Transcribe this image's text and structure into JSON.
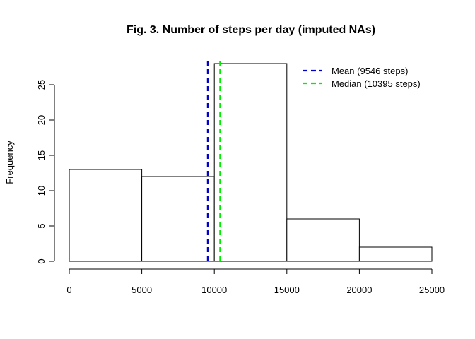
{
  "chart_data": {
    "type": "bar",
    "title": "Fig. 3. Number of steps per day (imputed NAs)",
    "xlabel": "",
    "ylabel": "Frequency",
    "bins": [
      {
        "from": 0,
        "to": 5000,
        "count": 13
      },
      {
        "from": 5000,
        "to": 10000,
        "count": 12
      },
      {
        "from": 10000,
        "to": 15000,
        "count": 28
      },
      {
        "from": 15000,
        "to": 20000,
        "count": 6
      },
      {
        "from": 20000,
        "to": 25000,
        "count": 2
      }
    ],
    "xlim": [
      0,
      25000
    ],
    "ylim": [
      0,
      28
    ],
    "x_ticks": [
      0,
      5000,
      10000,
      15000,
      20000,
      25000
    ],
    "y_ticks": [
      0,
      5,
      10,
      15,
      20,
      25
    ],
    "grid": false,
    "bar_fill": "#ffffff",
    "bar_stroke": "#000000",
    "reference_lines": [
      {
        "label": "Mean (9546 steps)",
        "x": 9546,
        "color": "#0000cd",
        "style": "dashed"
      },
      {
        "label": "Median (10395 steps)",
        "x": 10395,
        "color": "#00ee00",
        "style": "dashed"
      }
    ],
    "legend_position": "top-right"
  }
}
